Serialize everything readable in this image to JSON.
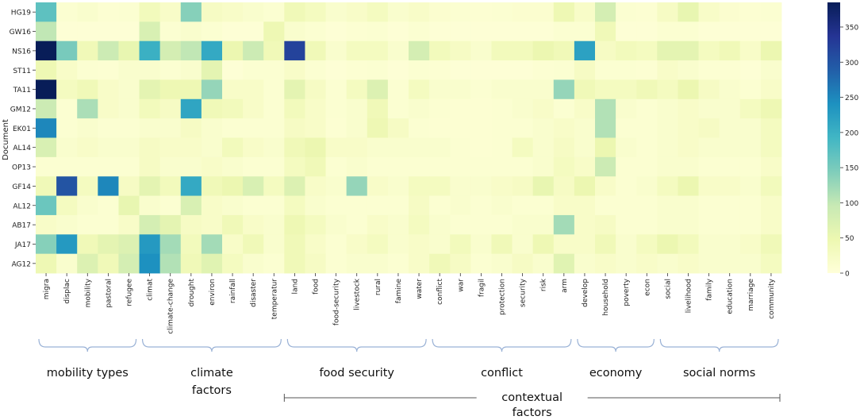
{
  "chart_data": {
    "type": "heatmap",
    "ylabel": "Document",
    "rows": [
      "HG19",
      "GW16",
      "NS16",
      "ST11",
      "TA11",
      "GM12",
      "EK01",
      "AL14",
      "OP13",
      "GF14",
      "AL12",
      "AB17",
      "JA17",
      "AG12"
    ],
    "columns": [
      "migra",
      "displac",
      "mobility",
      "pastoral",
      "refugee",
      "climat",
      "climate-change",
      "drought",
      "environ",
      "rainfall",
      "disaster",
      "temperatur",
      "land",
      "food",
      "food-security",
      "livestock",
      "rural",
      "famine",
      "water",
      "conflict",
      "war",
      "fragil",
      "protection",
      "security",
      "risk",
      "arm",
      "develop",
      "household",
      "poverty",
      "econ",
      "social",
      "livelihood",
      "family",
      "education",
      "marriage",
      "community"
    ],
    "values": [
      [
        170,
        10,
        15,
        8,
        10,
        35,
        20,
        140,
        25,
        20,
        15,
        10,
        40,
        30,
        15,
        20,
        30,
        15,
        20,
        12,
        10,
        8,
        10,
        12,
        12,
        45,
        20,
        80,
        10,
        8,
        25,
        55,
        20,
        12,
        8,
        10
      ],
      [
        100,
        5,
        5,
        5,
        5,
        75,
        10,
        15,
        10,
        5,
        5,
        45,
        15,
        10,
        5,
        8,
        10,
        5,
        10,
        5,
        5,
        5,
        5,
        5,
        5,
        10,
        10,
        40,
        5,
        5,
        10,
        10,
        5,
        5,
        5,
        5
      ],
      [
        385,
        150,
        40,
        90,
        55,
        200,
        80,
        100,
        210,
        50,
        90,
        40,
        320,
        40,
        15,
        30,
        30,
        15,
        80,
        35,
        25,
        15,
        35,
        35,
        50,
        40,
        220,
        25,
        35,
        30,
        60,
        60,
        30,
        40,
        20,
        50
      ],
      [
        45,
        20,
        10,
        8,
        15,
        15,
        10,
        15,
        60,
        5,
        10,
        10,
        20,
        10,
        5,
        8,
        10,
        5,
        10,
        8,
        5,
        5,
        5,
        5,
        8,
        10,
        25,
        10,
        10,
        8,
        20,
        15,
        8,
        8,
        5,
        15
      ],
      [
        385,
        30,
        40,
        20,
        15,
        60,
        45,
        45,
        130,
        20,
        20,
        10,
        60,
        25,
        10,
        30,
        70,
        10,
        30,
        15,
        15,
        10,
        15,
        15,
        15,
        130,
        40,
        30,
        30,
        40,
        30,
        50,
        25,
        15,
        10,
        20
      ],
      [
        90,
        10,
        115,
        20,
        15,
        35,
        25,
        215,
        40,
        35,
        20,
        10,
        35,
        20,
        10,
        15,
        40,
        10,
        15,
        10,
        8,
        8,
        10,
        15,
        20,
        10,
        20,
        110,
        15,
        10,
        15,
        20,
        15,
        15,
        30,
        45
      ],
      [
        250,
        10,
        15,
        10,
        10,
        15,
        15,
        25,
        15,
        10,
        10,
        10,
        25,
        20,
        8,
        15,
        45,
        25,
        10,
        8,
        8,
        8,
        10,
        10,
        15,
        20,
        15,
        110,
        10,
        10,
        15,
        20,
        25,
        15,
        15,
        30
      ],
      [
        75,
        15,
        20,
        15,
        15,
        25,
        20,
        20,
        15,
        35,
        20,
        15,
        40,
        50,
        20,
        20,
        15,
        15,
        15,
        15,
        10,
        8,
        10,
        30,
        15,
        25,
        15,
        50,
        15,
        10,
        15,
        20,
        15,
        15,
        15,
        30
      ],
      [
        10,
        10,
        10,
        10,
        10,
        25,
        15,
        15,
        20,
        15,
        10,
        10,
        30,
        40,
        10,
        15,
        10,
        10,
        10,
        10,
        10,
        10,
        10,
        10,
        15,
        30,
        20,
        90,
        10,
        10,
        15,
        15,
        10,
        10,
        10,
        20
      ],
      [
        40,
        300,
        30,
        250,
        25,
        60,
        35,
        210,
        40,
        50,
        75,
        30,
        70,
        20,
        15,
        130,
        20,
        15,
        30,
        30,
        15,
        15,
        20,
        25,
        55,
        25,
        50,
        20,
        10,
        15,
        30,
        50,
        20,
        20,
        15,
        35
      ],
      [
        160,
        30,
        15,
        10,
        55,
        15,
        10,
        75,
        20,
        15,
        10,
        10,
        30,
        15,
        10,
        10,
        10,
        10,
        25,
        10,
        15,
        10,
        15,
        10,
        10,
        20,
        20,
        10,
        10,
        10,
        15,
        15,
        10,
        10,
        10,
        20
      ],
      [
        20,
        15,
        10,
        10,
        20,
        80,
        60,
        25,
        20,
        40,
        20,
        15,
        45,
        30,
        15,
        10,
        20,
        15,
        30,
        15,
        10,
        10,
        10,
        15,
        15,
        120,
        20,
        25,
        10,
        10,
        15,
        15,
        10,
        10,
        10,
        20
      ],
      [
        140,
        230,
        40,
        60,
        70,
        230,
        120,
        35,
        120,
        20,
        40,
        15,
        40,
        20,
        10,
        20,
        30,
        15,
        20,
        15,
        35,
        15,
        40,
        15,
        45,
        20,
        20,
        40,
        15,
        30,
        50,
        35,
        15,
        15,
        20,
        40
      ],
      [
        45,
        15,
        70,
        40,
        80,
        240,
        110,
        40,
        65,
        30,
        15,
        10,
        40,
        25,
        10,
        15,
        15,
        10,
        20,
        40,
        25,
        10,
        15,
        25,
        15,
        65,
        15,
        20,
        15,
        20,
        15,
        20,
        15,
        15,
        15,
        30
      ]
    ],
    "colorbar": {
      "min": 0,
      "max": 385,
      "ticks": [
        0,
        50,
        100,
        150,
        200,
        250,
        300,
        350
      ]
    },
    "groups": [
      {
        "label": "mobility types",
        "start": "migra",
        "end": "refugee"
      },
      {
        "label": "climate factors",
        "start": "climat",
        "end": "temperatur"
      },
      {
        "label": "food security",
        "start": "land",
        "end": "water"
      },
      {
        "label": "conflict",
        "start": "conflict",
        "end": "arm"
      },
      {
        "label": "economy",
        "start": "develop",
        "end": "econ"
      },
      {
        "label": "social norms",
        "start": "social",
        "end": "community"
      }
    ],
    "super_group": {
      "label": "contextual factors",
      "start": "land",
      "end": "community"
    },
    "colorscale": "YlGnBu"
  }
}
